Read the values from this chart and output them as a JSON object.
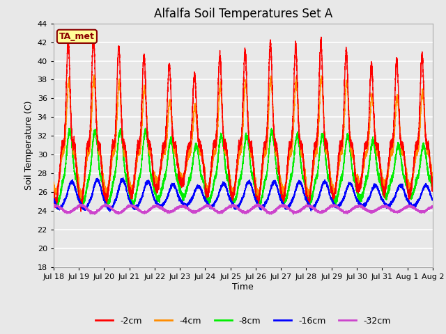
{
  "title": "Alfalfa Soil Temperatures Set A",
  "xlabel": "Time",
  "ylabel": "Soil Temperature (C)",
  "ylim": [
    18,
    44
  ],
  "yticks": [
    18,
    20,
    22,
    24,
    26,
    28,
    30,
    32,
    34,
    36,
    38,
    40,
    42,
    44
  ],
  "xtick_labels": [
    "Jul 18",
    "Jul 19",
    "Jul 20",
    "Jul 21",
    "Jul 22",
    "Jul 23",
    "Jul 24",
    "Jul 25",
    "Jul 26",
    "Jul 27",
    "Jul 28",
    "Jul 29",
    "Jul 30",
    "Jul 31",
    "Aug 1",
    "Aug 2"
  ],
  "annotation": "TA_met",
  "colors": {
    "-2cm": "#ff0000",
    "-4cm": "#ff8c00",
    "-8cm": "#00ee00",
    "-16cm": "#0000ff",
    "-32cm": "#cc44cc"
  },
  "legend_labels": [
    "-2cm",
    "-4cm",
    "-8cm",
    "-16cm",
    "-32cm"
  ],
  "bg_color": "#e8e8e8",
  "n_days": 16,
  "points_per_day": 480
}
